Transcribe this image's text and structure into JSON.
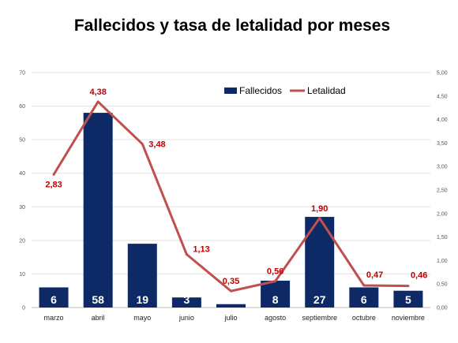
{
  "chart_data": {
    "type": "bar",
    "title": "Fallecidos y tasa de letalidad por meses",
    "categories": [
      "marzo",
      "abril",
      "mayo",
      "junio",
      "julio",
      "agosto",
      "septiembre",
      "octubre",
      "noviembre"
    ],
    "series": [
      {
        "name": "Fallecidos",
        "type": "bar",
        "axis": "left",
        "values": [
          6,
          58,
          19,
          3,
          1,
          8,
          27,
          6,
          5
        ],
        "labels": [
          "6",
          "58",
          "19",
          "3",
          "1",
          "8",
          "27",
          "6",
          "5"
        ],
        "color": "#0e2a66"
      },
      {
        "name": "Letalidad",
        "type": "line",
        "axis": "right",
        "values": [
          2.83,
          4.38,
          3.48,
          1.13,
          0.35,
          0.56,
          1.9,
          0.47,
          0.46
        ],
        "labels": [
          "2,83",
          "4,38",
          "3,48",
          "1,13",
          "0,35",
          "0,56",
          "1,90",
          "0,47",
          "0,46"
        ],
        "color": "#c0504d",
        "label_color": "#c00000"
      }
    ],
    "ylim_left": [
      0,
      70
    ],
    "yticks_left": [
      "0",
      "10",
      "20",
      "30",
      "40",
      "50",
      "60",
      "70"
    ],
    "ylim_right": [
      0,
      5
    ],
    "yticks_right": [
      "0,00",
      "0,50",
      "1,00",
      "1,50",
      "2,00",
      "2,50",
      "3,00",
      "3,50",
      "4,00",
      "4,50",
      "5,00"
    ],
    "grid": true,
    "legend_position": "top-right"
  }
}
